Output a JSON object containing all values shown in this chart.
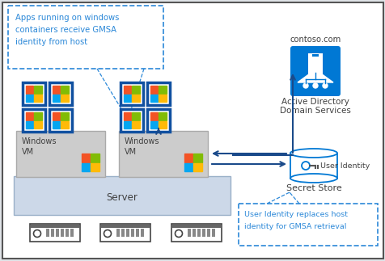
{
  "bg_color": "#e0e4e8",
  "border_color": "#555555",
  "blue_dark": "#0078d4",
  "arrow_color": "#1a4a8a",
  "dashed_color": "#2b88d8",
  "text_dark": "#404040",
  "text_blue": "#2b88d8",
  "server_bg": "#ccd8e8",
  "vm_bg": "#cccccc",
  "win_blue": "#1050a0",
  "callout_text": "Apps running on windows\ncontainers receive GMSA\nidentity from host",
  "ad_label_top": "contoso.com",
  "ad_label_bottom1": "Active Directory",
  "ad_label_bottom2": "Domain Services",
  "secret_label": "Secret Store",
  "user_id_label": "User Identity",
  "server_label": "Server",
  "vm_label": "Windows\nVM",
  "bottom_note1": "User Identity replaces host",
  "bottom_note2": "identity for GMSA retrieval"
}
